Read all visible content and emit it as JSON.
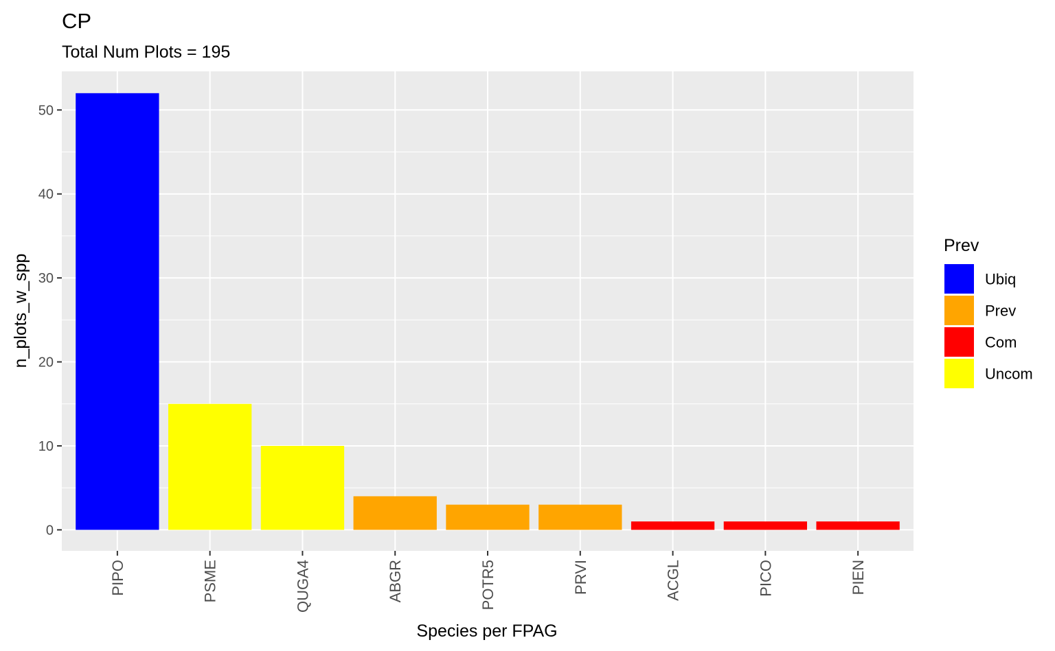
{
  "chart_data": {
    "type": "bar",
    "title": "CP",
    "subtitle": "Total Num Plots = 195",
    "xlabel": "Species per FPAG",
    "ylabel": "n_plots_w_spp",
    "categories": [
      "PIPO",
      "PSME",
      "QUGA4",
      "ABGR",
      "POTR5",
      "PRVI",
      "ACGL",
      "PICO",
      "PIEN"
    ],
    "values": [
      52,
      15,
      10,
      4,
      3,
      3,
      1,
      1,
      1
    ],
    "groups": [
      "Ubiq",
      "Uncom",
      "Uncom",
      "Prev",
      "Prev",
      "Prev",
      "Com",
      "Com",
      "Com"
    ],
    "ylim": [
      -2.5,
      54.6
    ],
    "yticks": [
      0,
      10,
      20,
      30,
      40,
      50
    ],
    "grid": true,
    "legend": {
      "title": "Prev",
      "position": "right",
      "entries": [
        {
          "label": "Ubiq",
          "color": "#0000ff"
        },
        {
          "label": "Prev",
          "color": "#ffa500"
        },
        {
          "label": "Com",
          "color": "#ff0000"
        },
        {
          "label": "Uncom",
          "color": "#ffff00"
        }
      ]
    },
    "colors": {
      "panel_background": "#ebebeb",
      "grid_major": "#ffffff"
    }
  }
}
